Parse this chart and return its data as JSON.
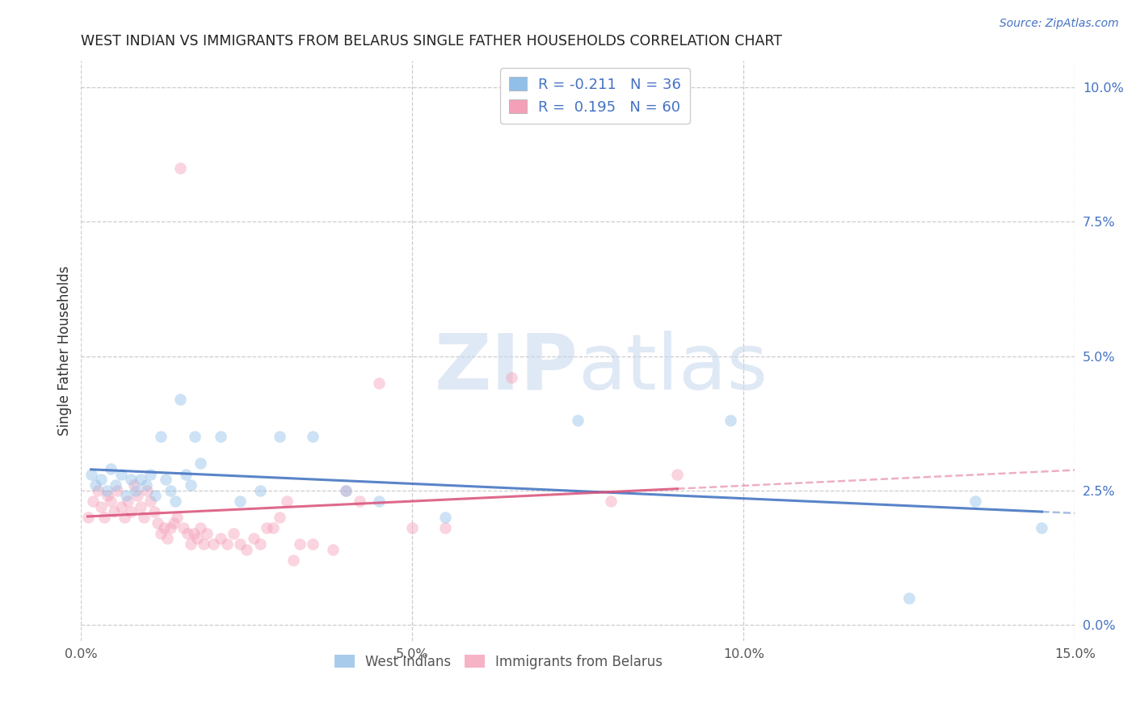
{
  "title": "WEST INDIAN VS IMMIGRANTS FROM BELARUS SINGLE FATHER HOUSEHOLDS CORRELATION CHART",
  "source": "Source: ZipAtlas.com",
  "ylabel": "Single Father Households",
  "ylabel_ticks": [
    "0.0%",
    "2.5%",
    "5.0%",
    "7.5%",
    "10.0%"
  ],
  "ylabel_vals": [
    0.0,
    2.5,
    5.0,
    7.5,
    10.0
  ],
  "xlabel_ticks": [
    "0.0%",
    "5.0%",
    "10.0%",
    "15.0%"
  ],
  "xlabel_vals": [
    0.0,
    5.0,
    10.0,
    15.0
  ],
  "xlim": [
    0.0,
    15.0
  ],
  "ylim": [
    -0.3,
    10.5
  ],
  "legend1_r": "R = -0.211",
  "legend1_n": "N = 36",
  "legend2_r": "R =  0.195",
  "legend2_n": "N = 60",
  "west_indians_color": "#92BFE8",
  "belarus_color": "#F4A0B8",
  "trendline_blue": "#3C6EBF",
  "trendline_pink": "#D94F78",
  "background_color": "#FFFFFF",
  "grid_color": "#CCCCCC",
  "watermark_color": "#C5D8EE",
  "west_indians_x": [
    0.15,
    0.22,
    0.3,
    0.38,
    0.45,
    0.52,
    0.6,
    0.68,
    0.75,
    0.82,
    0.9,
    0.98,
    1.05,
    1.12,
    1.2,
    1.28,
    1.35,
    1.42,
    1.5,
    1.58,
    1.65,
    1.72,
    1.8,
    2.1,
    2.4,
    2.7,
    3.0,
    3.5,
    4.0,
    4.5,
    5.5,
    7.5,
    9.8,
    12.5,
    13.5,
    14.5
  ],
  "west_indians_y": [
    2.8,
    2.6,
    2.7,
    2.5,
    2.9,
    2.6,
    2.8,
    2.4,
    2.7,
    2.5,
    2.7,
    2.6,
    2.8,
    2.4,
    3.5,
    2.7,
    2.5,
    2.3,
    4.2,
    2.8,
    2.6,
    3.5,
    3.0,
    3.5,
    2.3,
    2.5,
    3.5,
    3.5,
    2.5,
    2.3,
    2.0,
    3.8,
    3.8,
    0.5,
    2.3,
    1.8
  ],
  "belarus_x": [
    0.1,
    0.18,
    0.25,
    0.3,
    0.35,
    0.4,
    0.45,
    0.5,
    0.55,
    0.6,
    0.65,
    0.7,
    0.75,
    0.8,
    0.85,
    0.9,
    0.95,
    1.0,
    1.05,
    1.1,
    1.15,
    1.2,
    1.25,
    1.3,
    1.35,
    1.4,
    1.45,
    1.5,
    1.55,
    1.6,
    1.65,
    1.7,
    1.75,
    1.8,
    1.85,
    1.9,
    2.0,
    2.1,
    2.2,
    2.3,
    2.4,
    2.5,
    2.6,
    2.7,
    2.8,
    2.9,
    3.0,
    3.1,
    3.2,
    3.3,
    3.5,
    3.8,
    4.0,
    4.2,
    4.5,
    5.0,
    5.5,
    6.5,
    8.0,
    9.0
  ],
  "belarus_y": [
    2.0,
    2.3,
    2.5,
    2.2,
    2.0,
    2.4,
    2.3,
    2.1,
    2.5,
    2.2,
    2.0,
    2.3,
    2.1,
    2.6,
    2.4,
    2.2,
    2.0,
    2.5,
    2.3,
    2.1,
    1.9,
    1.7,
    1.8,
    1.6,
    1.8,
    1.9,
    2.0,
    8.5,
    1.8,
    1.7,
    1.5,
    1.7,
    1.6,
    1.8,
    1.5,
    1.7,
    1.5,
    1.6,
    1.5,
    1.7,
    1.5,
    1.4,
    1.6,
    1.5,
    1.8,
    1.8,
    2.0,
    2.3,
    1.2,
    1.5,
    1.5,
    1.4,
    2.5,
    2.3,
    4.5,
    1.8,
    1.8,
    4.6,
    2.3,
    2.8
  ],
  "marker_size": 110,
  "marker_alpha": 0.45
}
